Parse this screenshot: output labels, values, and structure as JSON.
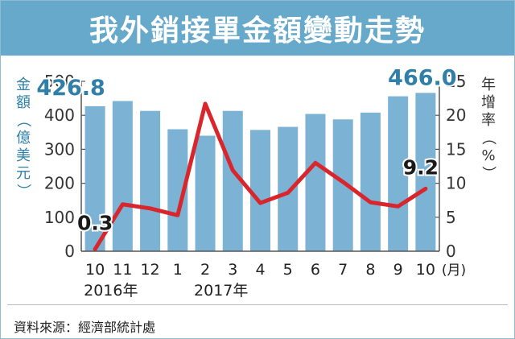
{
  "title": "我外銷接單金額變動走勢",
  "source": "資料來源：經濟部統計處",
  "colors": {
    "title_bg": "#66a9cb",
    "bar": "#7cb3d5",
    "line": "#d9262c",
    "axis_text": "#2f7fa8",
    "ticks_left": "#333333"
  },
  "chart_data": {
    "type": "bar",
    "categories": [
      "10",
      "11",
      "12",
      "1",
      "2",
      "3",
      "4",
      "5",
      "6",
      "7",
      "8",
      "9",
      "10"
    ],
    "category_suffix": "(月)",
    "year_labels": [
      {
        "label": "2016年",
        "category_index": 0
      },
      {
        "label": "2017年",
        "category_index": 4
      }
    ],
    "series": [
      {
        "type": "bar",
        "axis": "left",
        "values": [
          426.8,
          442,
          413,
          359,
          340,
          413,
          357,
          366,
          404,
          388,
          408,
          456,
          466.0
        ]
      },
      {
        "type": "line",
        "axis": "right",
        "values": [
          0.3,
          6.9,
          6.3,
          5.3,
          21.7,
          11.9,
          7.1,
          8.6,
          13.0,
          10.2,
          7.2,
          6.6,
          9.2
        ]
      }
    ],
    "annotations": [
      {
        "text": "426.8",
        "series": 0,
        "index": 0
      },
      {
        "text": "466.0",
        "series": 0,
        "index": 12
      },
      {
        "text": "0.3",
        "series": 1,
        "index": 0
      },
      {
        "text": "9.2",
        "series": 1,
        "index": 12
      }
    ],
    "ylabel_left": "金額（億美元）",
    "ylabel_right": "年增率（%）",
    "y_left": {
      "min": 0,
      "max": 500,
      "ticks": [
        "0",
        "100",
        "200",
        "300",
        "400",
        "500"
      ]
    },
    "y_right": {
      "min": 0,
      "max": 25,
      "ticks": [
        "0",
        "5",
        "10",
        "15",
        "20",
        "25"
      ]
    },
    "grid": false
  }
}
